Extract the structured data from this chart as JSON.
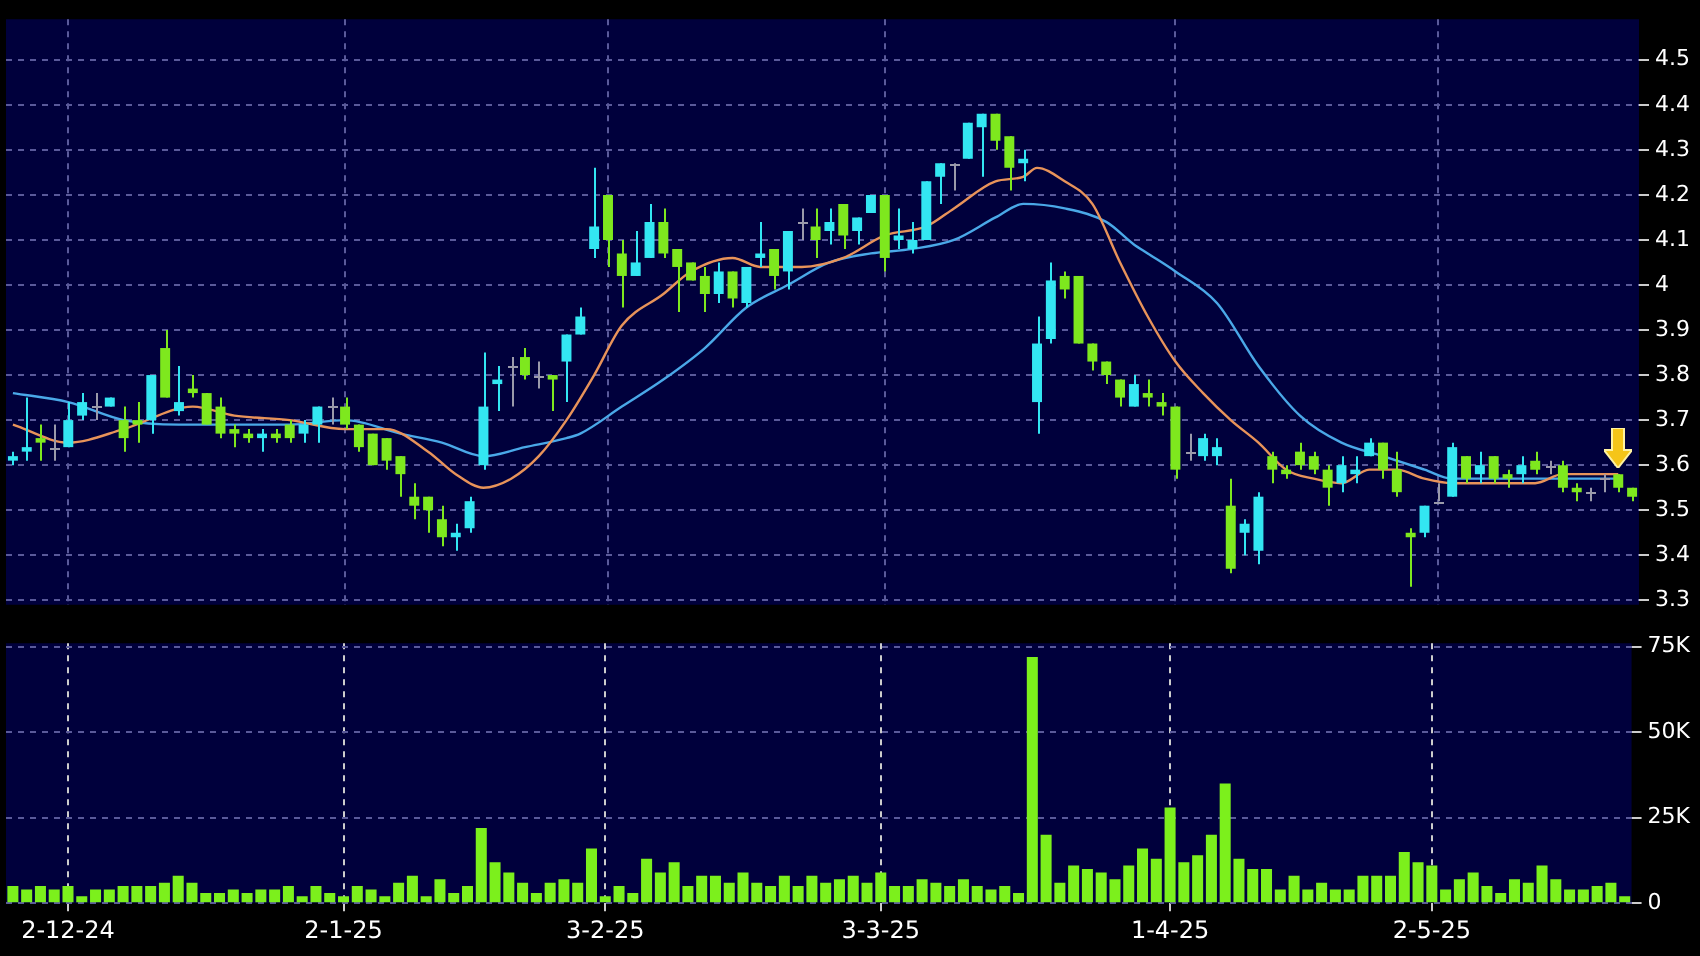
{
  "chart_data": [
    {
      "type": "candlestick",
      "tick_labels": "y",
      "grid": true,
      "ylim": [
        3.29,
        4.59
      ],
      "yticks": [
        3.3,
        3.4,
        3.5,
        3.6,
        3.7,
        3.8,
        3.9,
        4,
        4.1,
        4.2,
        4.3,
        4.4,
        4.5
      ],
      "categories": [
        null,
        null,
        null,
        null,
        null,
        null,
        null,
        null,
        null,
        null,
        null,
        null,
        null,
        null,
        null,
        null,
        null,
        null,
        null,
        null,
        null,
        null,
        null,
        null,
        null,
        null,
        null,
        null,
        null,
        null,
        null,
        null,
        null,
        null,
        null,
        null,
        null,
        null,
        null,
        null,
        null,
        null,
        null,
        null,
        null,
        null,
        null,
        null,
        null,
        null,
        null,
        null,
        null,
        null,
        null,
        null,
        null,
        null,
        null,
        null,
        null,
        null,
        null,
        null,
        null,
        null,
        null,
        null,
        null,
        null,
        null,
        null,
        null,
        null,
        null,
        null,
        null,
        null,
        null,
        null,
        null,
        null,
        null,
        null,
        null,
        null,
        null,
        null,
        null,
        null,
        null,
        null,
        null,
        null,
        null,
        null,
        null,
        null,
        null,
        null,
        null,
        null,
        null,
        null,
        null,
        null,
        null,
        null,
        null,
        null,
        null,
        null,
        null,
        null,
        null,
        null,
        null,
        null
      ],
      "series": [
        {
          "type": "candlestick",
          "ohlc": [
            [
              3.61,
              3.63,
              3.6,
              3.62
            ],
            [
              3.63,
              3.75,
              3.61,
              3.64
            ],
            [
              3.66,
              3.69,
              3.61,
              3.65
            ],
            [
              3.64,
              3.69,
              3.61,
              3.64
            ],
            [
              3.64,
              3.74,
              3.64,
              3.7
            ],
            [
              3.71,
              3.76,
              3.7,
              3.74
            ],
            [
              3.73,
              3.76,
              3.7,
              3.73
            ],
            [
              3.73,
              3.75,
              3.73,
              3.75
            ],
            [
              3.7,
              3.73,
              3.63,
              3.66
            ],
            [
              3.7,
              3.74,
              3.65,
              3.69
            ],
            [
              3.7,
              3.8,
              3.67,
              3.8
            ],
            [
              3.86,
              3.9,
              3.75,
              3.75
            ],
            [
              3.72,
              3.82,
              3.71,
              3.74
            ],
            [
              3.77,
              3.8,
              3.75,
              3.76
            ],
            [
              3.76,
              3.76,
              3.69,
              3.69
            ],
            [
              3.73,
              3.75,
              3.66,
              3.67
            ],
            [
              3.68,
              3.69,
              3.64,
              3.67
            ],
            [
              3.67,
              3.68,
              3.65,
              3.66
            ],
            [
              3.66,
              3.68,
              3.63,
              3.67
            ],
            [
              3.67,
              3.68,
              3.65,
              3.66
            ],
            [
              3.69,
              3.7,
              3.65,
              3.66
            ],
            [
              3.67,
              3.7,
              3.65,
              3.69
            ],
            [
              3.69,
              3.73,
              3.65,
              3.73
            ],
            [
              3.73,
              3.75,
              3.69,
              3.73
            ],
            [
              3.73,
              3.75,
              3.68,
              3.69
            ],
            [
              3.69,
              3.69,
              3.63,
              3.64
            ],
            [
              3.67,
              3.67,
              3.6,
              3.6
            ],
            [
              3.66,
              3.66,
              3.59,
              3.61
            ],
            [
              3.62,
              3.62,
              3.53,
              3.58
            ],
            [
              3.53,
              3.56,
              3.48,
              3.51
            ],
            [
              3.53,
              3.53,
              3.45,
              3.5
            ],
            [
              3.48,
              3.51,
              3.42,
              3.44
            ],
            [
              3.44,
              3.47,
              3.41,
              3.45
            ],
            [
              3.46,
              3.53,
              3.45,
              3.52
            ],
            [
              3.6,
              3.85,
              3.59,
              3.73
            ],
            [
              3.78,
              3.82,
              3.72,
              3.79
            ],
            [
              3.82,
              3.84,
              3.73,
              3.82
            ],
            [
              3.84,
              3.86,
              3.79,
              3.8
            ],
            [
              3.8,
              3.83,
              3.77,
              3.8
            ],
            [
              3.8,
              3.8,
              3.72,
              3.79
            ],
            [
              3.83,
              3.89,
              3.74,
              3.89
            ],
            [
              3.89,
              3.95,
              3.89,
              3.93
            ],
            [
              4.08,
              4.26,
              4.06,
              4.13
            ],
            [
              4.2,
              4.2,
              4.04,
              4.1
            ],
            [
              4.07,
              4.1,
              3.95,
              4.02
            ],
            [
              4.02,
              4.12,
              4.02,
              4.05
            ],
            [
              4.06,
              4.18,
              4.06,
              4.14
            ],
            [
              4.14,
              4.17,
              4.06,
              4.07
            ],
            [
              4.08,
              4.08,
              3.94,
              4.04
            ],
            [
              4.05,
              4.05,
              4.01,
              4.01
            ],
            [
              4.02,
              4.04,
              3.94,
              3.98
            ],
            [
              3.98,
              4.05,
              3.96,
              4.03
            ],
            [
              4.03,
              4.03,
              3.95,
              3.97
            ],
            [
              3.96,
              4.04,
              3.95,
              4.04
            ],
            [
              4.06,
              4.14,
              4.04,
              4.07
            ],
            [
              4.08,
              4.08,
              3.99,
              4.02
            ],
            [
              4.03,
              4.12,
              3.99,
              4.12
            ],
            [
              4.14,
              4.17,
              4.1,
              4.14
            ],
            [
              4.13,
              4.17,
              4.06,
              4.1
            ],
            [
              4.12,
              4.17,
              4.09,
              4.14
            ],
            [
              4.18,
              4.18,
              4.08,
              4.11
            ],
            [
              4.12,
              4.15,
              4.09,
              4.15
            ],
            [
              4.16,
              4.2,
              4.16,
              4.2
            ],
            [
              4.2,
              4.2,
              4.03,
              4.06
            ],
            [
              4.1,
              4.17,
              4.08,
              4.11
            ],
            [
              4.08,
              4.14,
              4.07,
              4.1
            ],
            [
              4.1,
              4.23,
              4.1,
              4.23
            ],
            [
              4.24,
              4.27,
              4.18,
              4.27
            ],
            [
              4.27,
              4.27,
              4.21,
              4.27
            ],
            [
              4.28,
              4.36,
              4.28,
              4.36
            ],
            [
              4.35,
              4.38,
              4.24,
              4.38
            ],
            [
              4.38,
              4.38,
              4.3,
              4.32
            ],
            [
              4.33,
              4.33,
              4.21,
              4.26
            ],
            [
              4.27,
              4.3,
              4.23,
              4.28
            ],
            [
              3.74,
              3.93,
              3.67,
              3.87
            ],
            [
              3.88,
              4.05,
              3.87,
              4.01
            ],
            [
              4.02,
              4.03,
              3.97,
              3.99
            ],
            [
              4.02,
              4.02,
              3.87,
              3.87
            ],
            [
              3.87,
              3.87,
              3.81,
              3.83
            ],
            [
              3.83,
              3.83,
              3.78,
              3.8
            ],
            [
              3.79,
              3.79,
              3.73,
              3.75
            ],
            [
              3.73,
              3.8,
              3.73,
              3.78
            ],
            [
              3.76,
              3.79,
              3.73,
              3.75
            ],
            [
              3.74,
              3.76,
              3.71,
              3.73
            ],
            [
              3.73,
              3.73,
              3.57,
              3.59
            ],
            [
              3.63,
              3.67,
              3.61,
              3.63
            ],
            [
              3.62,
              3.67,
              3.61,
              3.66
            ],
            [
              3.62,
              3.66,
              3.6,
              3.64
            ],
            [
              3.51,
              3.57,
              3.36,
              3.37
            ],
            [
              3.45,
              3.48,
              3.4,
              3.47
            ],
            [
              3.41,
              3.54,
              3.38,
              3.53
            ],
            [
              3.62,
              3.63,
              3.56,
              3.59
            ],
            [
              3.59,
              3.6,
              3.57,
              3.58
            ],
            [
              3.63,
              3.65,
              3.59,
              3.6
            ],
            [
              3.62,
              3.63,
              3.58,
              3.59
            ],
            [
              3.59,
              3.6,
              3.51,
              3.55
            ],
            [
              3.56,
              3.62,
              3.54,
              3.6
            ],
            [
              3.58,
              3.62,
              3.56,
              3.59
            ],
            [
              3.62,
              3.66,
              3.62,
              3.65
            ],
            [
              3.65,
              3.65,
              3.57,
              3.59
            ],
            [
              3.59,
              3.63,
              3.53,
              3.54
            ],
            [
              3.45,
              3.46,
              3.33,
              3.44
            ],
            [
              3.45,
              3.51,
              3.44,
              3.51
            ],
            [
              3.52,
              3.56,
              3.52,
              3.52
            ],
            [
              3.53,
              3.65,
              3.53,
              3.64
            ],
            [
              3.62,
              3.62,
              3.56,
              3.57
            ],
            [
              3.58,
              3.63,
              3.56,
              3.6
            ],
            [
              3.62,
              3.62,
              3.56,
              3.57
            ],
            [
              3.58,
              3.59,
              3.55,
              3.57
            ],
            [
              3.58,
              3.62,
              3.56,
              3.6
            ],
            [
              3.61,
              3.63,
              3.58,
              3.59
            ],
            [
              3.6,
              3.61,
              3.58,
              3.6
            ],
            [
              3.6,
              3.61,
              3.54,
              3.55
            ],
            [
              3.55,
              3.56,
              3.52,
              3.54
            ],
            [
              3.54,
              3.55,
              3.52,
              3.54
            ],
            [
              3.57,
              3.58,
              3.54,
              3.57
            ],
            [
              3.58,
              3.58,
              3.54,
              3.55
            ],
            [
              3.55,
              3.55,
              3.52,
              3.53
            ]
          ],
          "colors": [
            "#33e6f2",
            "#33e6f2",
            "#7ee81e",
            "#9a9aaa",
            "#33e6f2",
            "#33e6f2",
            "#9a9aaa",
            "#33e6f2",
            "#7ee81e",
            "#7ee81e",
            "#33e6f2",
            "#7ee81e",
            "#33e6f2",
            "#7ee81e",
            "#7ee81e",
            "#7ee81e",
            "#7ee81e",
            "#7ee81e",
            "#33e6f2",
            "#7ee81e",
            "#7ee81e",
            "#33e6f2",
            "#33e6f2",
            "#9a9aaa",
            "#7ee81e",
            "#7ee81e",
            "#7ee81e",
            "#7ee81e",
            "#7ee81e",
            "#7ee81e",
            "#7ee81e",
            "#7ee81e",
            "#33e6f2",
            "#33e6f2",
            "#33e6f2",
            "#33e6f2",
            "#9a9aaa",
            "#7ee81e",
            "#9a9aaa",
            "#7ee81e",
            "#33e6f2",
            "#33e6f2",
            "#33e6f2",
            "#7ee81e",
            "#7ee81e",
            "#33e6f2",
            "#33e6f2",
            "#7ee81e",
            "#7ee81e",
            "#7ee81e",
            "#7ee81e",
            "#33e6f2",
            "#7ee81e",
            "#33e6f2",
            "#33e6f2",
            "#7ee81e",
            "#33e6f2",
            "#9a9aaa",
            "#7ee81e",
            "#33e6f2",
            "#7ee81e",
            "#33e6f2",
            "#33e6f2",
            "#7ee81e",
            "#33e6f2",
            "#33e6f2",
            "#33e6f2",
            "#33e6f2",
            "#9a9aaa",
            "#33e6f2",
            "#33e6f2",
            "#7ee81e",
            "#7ee81e",
            "#33e6f2",
            "#33e6f2",
            "#33e6f2",
            "#7ee81e",
            "#7ee81e",
            "#7ee81e",
            "#7ee81e",
            "#7ee81e",
            "#33e6f2",
            "#7ee81e",
            "#7ee81e",
            "#7ee81e",
            "#9a9aaa",
            "#33e6f2",
            "#33e6f2",
            "#7ee81e",
            "#33e6f2",
            "#33e6f2",
            "#7ee81e",
            "#7ee81e",
            "#7ee81e",
            "#7ee81e",
            "#7ee81e",
            "#33e6f2",
            "#33e6f2",
            "#33e6f2",
            "#7ee81e",
            "#7ee81e",
            "#7ee81e",
            "#33e6f2",
            "#9a9aaa",
            "#33e6f2",
            "#7ee81e",
            "#33e6f2",
            "#7ee81e",
            "#7ee81e",
            "#33e6f2",
            "#7ee81e",
            "#9a9aaa",
            "#7ee81e",
            "#7ee81e",
            "#9a9aaa",
            "#9a9aaa",
            "#7ee81e",
            "#7ee81e"
          ]
        },
        {
          "type": "line",
          "color": "#e8935a",
          "values": [
            3.69,
            null,
            null,
            null,
            3.65,
            null,
            null,
            null,
            3.68,
            null,
            null,
            null,
            null,
            3.73,
            null,
            null,
            3.71,
            null,
            null,
            null,
            3.7,
            null,
            null,
            null,
            3.68,
            null,
            null,
            3.68,
            null,
            null,
            3.63,
            null,
            3.58,
            null,
            3.55,
            null,
            3.57,
            null,
            3.62,
            null,
            3.7,
            null,
            3.8,
            null,
            3.91,
            null,
            null,
            3.98,
            null,
            4.03,
            null,
            null,
            4.06,
            null,
            4.04,
            null,
            null,
            4.04,
            null,
            null,
            4.06,
            null,
            null,
            4.11,
            null,
            null,
            4.13,
            null,
            4.17,
            null,
            null,
            4.23,
            null,
            4.24,
            4.26,
            null,
            4.23,
            null,
            4.18,
            null,
            4.05,
            null,
            3.93,
            null,
            3.83,
            null,
            3.76,
            null,
            3.7,
            null,
            3.65,
            null,
            3.59,
            null,
            3.57,
            null,
            3.56,
            null,
            3.59,
            null,
            3.59,
            null,
            3.57,
            null,
            3.56,
            null,
            3.56,
            null,
            3.56,
            null,
            3.56,
            null,
            3.58,
            null,
            3.58,
            null,
            3.58,
            null
          ]
        },
        {
          "type": "line",
          "color": "#4aa8e8",
          "values": [
            3.76,
            null,
            null,
            null,
            3.74,
            null,
            null,
            null,
            3.7,
            null,
            null,
            null,
            3.69,
            null,
            null,
            null,
            3.69,
            null,
            null,
            null,
            3.69,
            null,
            null,
            null,
            3.7,
            null,
            null,
            null,
            3.67,
            null,
            null,
            3.65,
            null,
            null,
            3.62,
            null,
            null,
            3.64,
            null,
            null,
            3.66,
            3.67,
            null,
            null,
            3.73,
            null,
            null,
            3.79,
            null,
            null,
            3.86,
            null,
            null,
            3.95,
            null,
            null,
            4.0,
            null,
            null,
            4.05,
            null,
            null,
            4.07,
            null,
            null,
            4.08,
            null,
            null,
            4.1,
            null,
            null,
            4.15,
            null,
            4.18,
            null,
            null,
            4.17,
            null,
            null,
            4.14,
            null,
            4.09,
            4.07,
            null,
            4.03,
            null,
            null,
            3.96,
            null,
            null,
            3.82,
            null,
            null,
            3.71,
            null,
            null,
            3.65,
            null,
            null,
            3.62,
            null,
            null,
            3.59,
            null,
            3.57,
            null,
            null,
            null,
            null,
            null,
            null,
            null,
            3.57,
            null,
            null,
            null,
            3.57,
            null
          ]
        }
      ]
    },
    {
      "type": "bar",
      "grid": true,
      "color": "#7cf01c",
      "ylim": [
        0,
        76
      ],
      "yticks": [
        0,
        {
          "value": 25,
          "label": "25K"
        },
        {
          "value": 50,
          "label": "50K"
        },
        {
          "value": 75,
          "label": "75K"
        }
      ],
      "categories": [
        null,
        null,
        null,
        null,
        "2-12-24",
        null,
        null,
        null,
        null,
        null,
        null,
        null,
        null,
        null,
        null,
        null,
        null,
        null,
        null,
        null,
        null,
        null,
        null,
        null,
        "2-1-25",
        null,
        null,
        null,
        null,
        null,
        null,
        null,
        null,
        null,
        null,
        null,
        null,
        null,
        null,
        null,
        null,
        null,
        null,
        "3-2-25",
        null,
        null,
        null,
        null,
        null,
        null,
        null,
        null,
        null,
        null,
        null,
        null,
        null,
        null,
        null,
        null,
        null,
        null,
        null,
        "3-3-25",
        null,
        null,
        null,
        null,
        null,
        null,
        null,
        null,
        null,
        null,
        null,
        null,
        null,
        null,
        null,
        null,
        null,
        null,
        null,
        null,
        "1-4-25",
        null,
        null,
        null,
        null,
        null,
        null,
        null,
        null,
        null,
        null,
        null,
        null,
        null,
        null,
        null,
        null,
        null,
        null,
        "2-5-25",
        null,
        null,
        null,
        null,
        null,
        null,
        null,
        null,
        null,
        null,
        null,
        null,
        null,
        null
      ],
      "values": [
        5,
        4,
        5,
        4,
        5,
        2,
        4,
        4,
        5,
        5,
        5,
        6,
        8,
        6,
        3,
        3,
        4,
        3,
        4,
        4,
        5,
        2,
        5,
        3,
        2,
        5,
        4,
        2,
        6,
        8,
        2,
        7,
        3,
        5,
        22,
        12,
        9,
        6,
        3,
        6,
        7,
        6,
        16,
        2,
        5,
        3,
        13,
        9,
        12,
        5,
        8,
        8,
        6,
        9,
        6,
        5,
        8,
        5,
        8,
        6,
        7,
        8,
        6,
        9,
        5,
        5,
        7,
        6,
        5,
        7,
        5,
        4,
        5,
        3,
        72,
        20,
        6,
        11,
        10,
        9,
        7,
        11,
        16,
        13,
        28,
        12,
        14,
        20,
        35,
        13,
        10,
        10,
        4,
        8,
        4,
        6,
        4,
        4,
        8,
        8,
        8,
        15,
        12,
        11,
        4,
        7,
        9,
        5,
        3,
        7,
        6,
        11,
        7,
        4,
        4,
        5,
        6,
        2
      ]
    }
  ]
}
